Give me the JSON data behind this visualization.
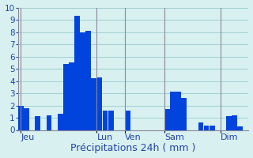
{
  "title": "",
  "xlabel": "Précipitations 24h ( mm )",
  "ylabel": "",
  "background_color": "#d8f0f0",
  "bar_color": "#0044dd",
  "grid_color": "#99cccc",
  "ylim": [
    0,
    10
  ],
  "yticks": [
    0,
    1,
    2,
    3,
    4,
    5,
    6,
    7,
    8,
    9,
    10
  ],
  "day_labels": [
    "Jeu",
    "Lun",
    "Ven",
    "Sam",
    "Dim"
  ],
  "separator_positions": [
    0.0,
    13.5,
    18.5,
    25.5,
    35.5
  ],
  "values": [
    2.0,
    1.8,
    0.0,
    1.1,
    0.0,
    1.2,
    0.0,
    1.3,
    5.4,
    5.5,
    9.3,
    8.0,
    8.1,
    4.2,
    4.3,
    1.6,
    1.6,
    0.0,
    0.0,
    1.6,
    0.0,
    0.0,
    0.0,
    0.0,
    0.0,
    0.0,
    1.7,
    3.1,
    3.1,
    2.6,
    0.0,
    0.0,
    0.6,
    0.35,
    0.35,
    0.0,
    0.0,
    1.1,
    1.2,
    0.3,
    0.0
  ],
  "xlabel_fontsize": 9,
  "tick_fontsize": 7.5,
  "day_label_fontsize": 8,
  "spine_color": "#888899"
}
